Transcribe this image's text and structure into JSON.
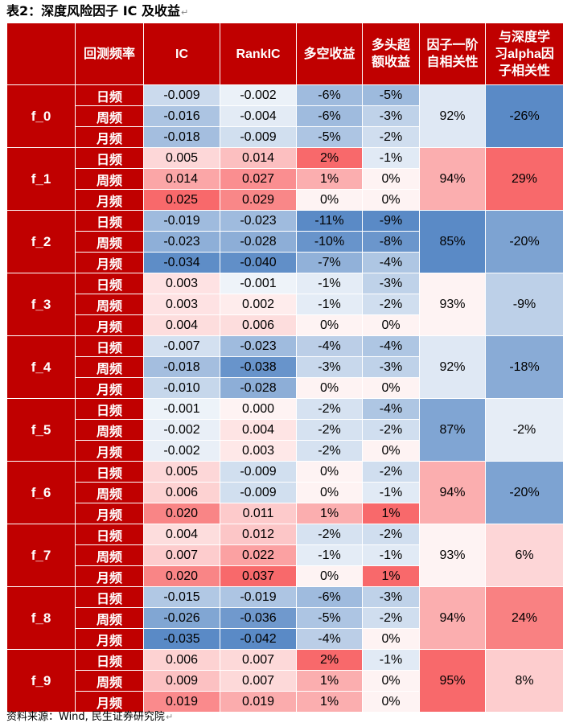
{
  "title": "表2：深度风险因子 IC 及收益",
  "return_mark": "↵",
  "headers": [
    "回测频率",
    "IC",
    "RankIC",
    "多空收益",
    "多头超额收益",
    "因子一阶自相关性",
    "与深度学习alpha因子相关性"
  ],
  "header_display": [
    [
      "回测频率"
    ],
    [
      "IC"
    ],
    [
      "RankIC"
    ],
    [
      "多空收益"
    ],
    [
      "多头超",
      "额收益"
    ],
    [
      "因子一阶",
      "自相关性"
    ],
    [
      "与深度学",
      "习alpha因",
      "子相关性"
    ]
  ],
  "frequencies": [
    "日频",
    "周频",
    "月频"
  ],
  "factors": [
    {
      "name": "f_0",
      "autocorr": "92%",
      "alpha_corr": "-26%",
      "rows": [
        {
          "ic": "-0.009",
          "rankic": "-0.002",
          "ls": "-6%",
          "lo": "-5%"
        },
        {
          "ic": "-0.016",
          "rankic": "-0.004",
          "ls": "-6%",
          "lo": "-3%"
        },
        {
          "ic": "-0.018",
          "rankic": "-0.009",
          "ls": "-5%",
          "lo": "-2%"
        }
      ]
    },
    {
      "name": "f_1",
      "autocorr": "94%",
      "alpha_corr": "29%",
      "rows": [
        {
          "ic": "0.005",
          "rankic": "0.014",
          "ls": "2%",
          "lo": "-1%"
        },
        {
          "ic": "0.014",
          "rankic": "0.027",
          "ls": "1%",
          "lo": "0%"
        },
        {
          "ic": "0.025",
          "rankic": "0.029",
          "ls": "0%",
          "lo": "0%"
        }
      ]
    },
    {
      "name": "f_2",
      "autocorr": "85%",
      "alpha_corr": "-20%",
      "rows": [
        {
          "ic": "-0.019",
          "rankic": "-0.023",
          "ls": "-11%",
          "lo": "-9%"
        },
        {
          "ic": "-0.023",
          "rankic": "-0.028",
          "ls": "-10%",
          "lo": "-8%"
        },
        {
          "ic": "-0.034",
          "rankic": "-0.040",
          "ls": "-7%",
          "lo": "-4%"
        }
      ]
    },
    {
      "name": "f_3",
      "autocorr": "93%",
      "alpha_corr": "-9%",
      "rows": [
        {
          "ic": "0.003",
          "rankic": "-0.001",
          "ls": "-1%",
          "lo": "-3%"
        },
        {
          "ic": "0.003",
          "rankic": "0.002",
          "ls": "-1%",
          "lo": "-2%"
        },
        {
          "ic": "0.004",
          "rankic": "0.006",
          "ls": "0%",
          "lo": "0%"
        }
      ]
    },
    {
      "name": "f_4",
      "autocorr": "92%",
      "alpha_corr": "-18%",
      "rows": [
        {
          "ic": "-0.007",
          "rankic": "-0.023",
          "ls": "-4%",
          "lo": "-4%"
        },
        {
          "ic": "-0.018",
          "rankic": "-0.038",
          "ls": "-3%",
          "lo": "-3%"
        },
        {
          "ic": "-0.010",
          "rankic": "-0.028",
          "ls": "0%",
          "lo": "0%"
        }
      ]
    },
    {
      "name": "f_5",
      "autocorr": "87%",
      "alpha_corr": "-2%",
      "rows": [
        {
          "ic": "-0.001",
          "rankic": "0.000",
          "ls": "-2%",
          "lo": "-4%"
        },
        {
          "ic": "-0.002",
          "rankic": "0.004",
          "ls": "-2%",
          "lo": "-2%"
        },
        {
          "ic": "-0.002",
          "rankic": "0.003",
          "ls": "-2%",
          "lo": "0%"
        }
      ]
    },
    {
      "name": "f_6",
      "autocorr": "94%",
      "alpha_corr": "-20%",
      "rows": [
        {
          "ic": "0.005",
          "rankic": "-0.009",
          "ls": "0%",
          "lo": "-2%"
        },
        {
          "ic": "0.006",
          "rankic": "-0.009",
          "ls": "0%",
          "lo": "-1%"
        },
        {
          "ic": "0.020",
          "rankic": "0.011",
          "ls": "1%",
          "lo": "1%"
        }
      ]
    },
    {
      "name": "f_7",
      "autocorr": "93%",
      "alpha_corr": "6%",
      "rows": [
        {
          "ic": "0.004",
          "rankic": "0.012",
          "ls": "-2%",
          "lo": "-2%"
        },
        {
          "ic": "0.007",
          "rankic": "0.022",
          "ls": "-1%",
          "lo": "-1%"
        },
        {
          "ic": "0.020",
          "rankic": "0.037",
          "ls": "0%",
          "lo": "1%"
        }
      ]
    },
    {
      "name": "f_8",
      "autocorr": "94%",
      "alpha_corr": "24%",
      "rows": [
        {
          "ic": "-0.015",
          "rankic": "-0.019",
          "ls": "-6%",
          "lo": "-3%"
        },
        {
          "ic": "-0.026",
          "rankic": "-0.036",
          "ls": "-5%",
          "lo": "-2%"
        },
        {
          "ic": "-0.035",
          "rankic": "-0.042",
          "ls": "-4%",
          "lo": "0%"
        }
      ]
    },
    {
      "name": "f_9",
      "autocorr": "95%",
      "alpha_corr": "8%",
      "rows": [
        {
          "ic": "0.006",
          "rankic": "0.007",
          "ls": "2%",
          "lo": "-1%"
        },
        {
          "ic": "0.009",
          "rankic": "0.007",
          "ls": "1%",
          "lo": "0%"
        },
        {
          "ic": "0.019",
          "rankic": "0.019",
          "ls": "1%",
          "lo": "0%"
        }
      ]
    }
  ],
  "source": "资料来源：Wind, 民生证券研究院",
  "colors": {
    "header_red": "#c00000",
    "positive_max": "#f8696b",
    "negative_max": "#5a8ac6",
    "neutral": "#ffffff"
  }
}
